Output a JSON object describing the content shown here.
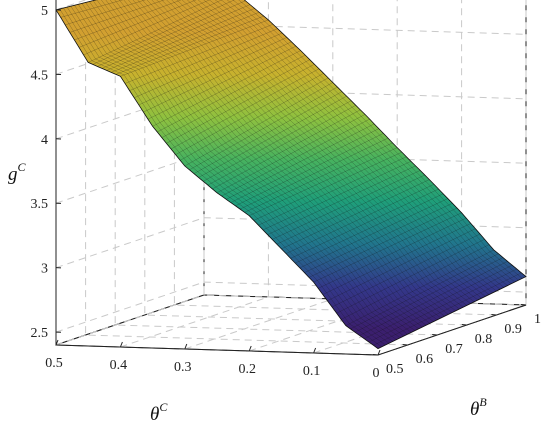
{
  "chart_data": {
    "type": "surface",
    "title": "",
    "zlabel": {
      "base": "g",
      "sup": "C"
    },
    "xlabel": {
      "base": "θ",
      "sup": "C"
    },
    "ylabel": {
      "base": "θ",
      "sup": "B"
    },
    "x_axis": {
      "name": "theta_C",
      "range": [
        0,
        0.5
      ],
      "ticks": [
        "0",
        "0.1",
        "0.2",
        "0.3",
        "0.4",
        "0.5"
      ]
    },
    "y_axis": {
      "name": "theta_B",
      "range": [
        0.5,
        1.0
      ],
      "ticks": [
        "0.5",
        "0.6",
        "0.7",
        "0.8",
        "0.9",
        "1"
      ]
    },
    "z_axis": {
      "name": "g_C",
      "range": [
        2.4,
        5.1
      ],
      "ticks": [
        "2.5",
        "3",
        "3.5",
        "4",
        "4.5",
        "5"
      ]
    },
    "grid": true,
    "colormap": "viridis",
    "colormap_stops": [
      "#3b1f6e",
      "#33388a",
      "#21758d",
      "#1f9e7a",
      "#47b25f",
      "#8fc13f",
      "#c7b22e",
      "#d2a030"
    ],
    "mesh_color": "#111111",
    "surface_samples": {
      "theta_B": [
        0.5,
        1.0
      ],
      "theta_C": [
        0.5,
        0.45,
        0.4,
        0.35,
        0.3,
        0.25,
        0.2,
        0.15,
        0.1,
        0.05,
        0.0
      ],
      "g_C_at_theta_B_0.5": [
        5.0,
        4.6,
        4.5,
        4.12,
        3.82,
        3.62,
        3.45,
        3.2,
        2.95,
        2.62,
        2.45
      ],
      "g_C_at_theta_B_1.0": [
        4.9,
        4.75,
        4.55,
        4.32,
        4.08,
        3.84,
        3.59,
        3.35,
        3.1,
        2.82,
        2.62
      ]
    }
  }
}
